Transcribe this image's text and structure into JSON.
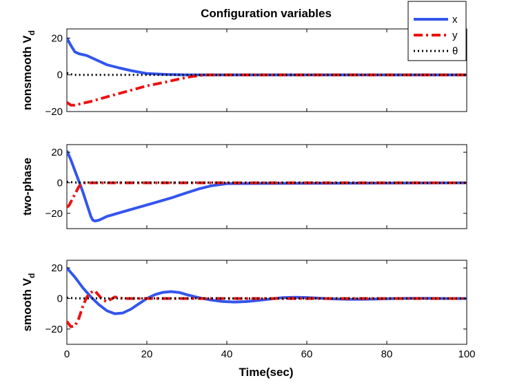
{
  "chart_data": {
    "type": "line",
    "title": "Configuration variables",
    "xlabel": "Time(sec)",
    "xlim": [
      0,
      100
    ],
    "xticks": [
      0,
      20,
      40,
      60,
      80,
      100
    ],
    "legend": {
      "placement": "top-right",
      "entries": [
        {
          "key": "x",
          "label": "x",
          "color": "#3355ee",
          "style": "solid"
        },
        {
          "key": "y",
          "label": "y",
          "color": "#ee1111",
          "style": "dashdot"
        },
        {
          "key": "theta",
          "label": "θ",
          "color": "#000000",
          "style": "dotted"
        }
      ]
    },
    "subplots": [
      {
        "name": "nonsmooth",
        "ylabel": "nonsmooth V",
        "ylabel_sub": "d",
        "ylim": [
          -20,
          25
        ],
        "yticks": [
          -20,
          0,
          20
        ],
        "series": [
          {
            "key": "x",
            "x": [
              0,
              1,
              2,
              3,
              5,
              8,
              10,
              13,
              16,
              20,
              25,
              30,
              35,
              40,
              100
            ],
            "y": [
              20,
              16,
              12.5,
              11.5,
              10.5,
              7.5,
              5.5,
              3.8,
              2.3,
              0.7,
              0.2,
              0,
              0,
              0,
              0
            ]
          },
          {
            "key": "y",
            "x": [
              0,
              1,
              2,
              4,
              6,
              10,
              15,
              20,
              25,
              28,
              31,
              34,
              36,
              100
            ],
            "y": [
              -15,
              -16.5,
              -16.5,
              -15.5,
              -14.5,
              -12,
              -9,
              -6,
              -3.8,
              -2.3,
              -1,
              -0.2,
              0,
              0
            ]
          },
          {
            "key": "theta",
            "x": [
              0,
              1,
              2,
              100
            ],
            "y": [
              1,
              0.3,
              0,
              0
            ]
          }
        ]
      },
      {
        "name": "two-phase",
        "ylabel": "two-phase",
        "ylabel_sub": "",
        "ylim": [
          -30,
          25
        ],
        "yticks": [
          -20,
          0,
          20
        ],
        "series": [
          {
            "key": "x",
            "x": [
              0,
              1,
              2,
              3,
              4,
              5,
              6,
              6.5,
              7,
              8,
              10,
              14,
              18,
              22,
              26,
              30,
              33,
              36,
              40,
              100
            ],
            "y": [
              21,
              15,
              8,
              1,
              -6,
              -14,
              -22,
              -24.5,
              -25,
              -24.5,
              -22,
              -19,
              -16,
              -13,
              -10,
              -6.5,
              -4,
              -2,
              -0.5,
              0
            ]
          },
          {
            "key": "y",
            "x": [
              0,
              0.5,
              1,
              2,
              3,
              4,
              5,
              100
            ],
            "y": [
              -16,
              -15,
              -12.5,
              -7.5,
              -2.5,
              0,
              0,
              0
            ]
          },
          {
            "key": "theta",
            "x": [
              0,
              2,
              100
            ],
            "y": [
              0.6,
              0.2,
              0
            ]
          }
        ]
      },
      {
        "name": "smooth",
        "ylabel": "smooth V",
        "ylabel_sub": "d",
        "ylim": [
          -30,
          25
        ],
        "yticks": [
          -20,
          0,
          20
        ],
        "series": [
          {
            "key": "x",
            "x": [
              0,
              2,
              4,
              6,
              8,
              10,
              12,
              14,
              16,
              18,
              20,
              22,
              24,
              26,
              28,
              30,
              33,
              36,
              39,
              42,
              45,
              48,
              51,
              54,
              57,
              60,
              63,
              66,
              70,
              74,
              78,
              82,
              86,
              90,
              95,
              100
            ],
            "y": [
              20,
              14,
              7,
              1,
              -4,
              -8,
              -10,
              -9.5,
              -7,
              -3.5,
              0,
              2.5,
              4,
              4.5,
              4,
              2.5,
              0.5,
              -1,
              -2,
              -2.3,
              -2,
              -1.2,
              -0.3,
              0.5,
              0.8,
              0.6,
              0.2,
              -0.2,
              -0.5,
              -0.5,
              -0.3,
              0,
              0.1,
              0.1,
              0,
              0
            ]
          },
          {
            "key": "y",
            "x": [
              0,
              1,
              2,
              3,
              4,
              5,
              6,
              7,
              8,
              9,
              10,
              11,
              12,
              13,
              14,
              16,
              100
            ],
            "y": [
              -15,
              -18.5,
              -18,
              -13,
              -5,
              1,
              4,
              5,
              2,
              -1,
              -2,
              -0.5,
              1,
              0.5,
              0,
              0,
              0
            ]
          },
          {
            "key": "theta",
            "x": [
              0,
              2,
              100
            ],
            "y": [
              0.5,
              0.1,
              0
            ]
          }
        ]
      }
    ]
  }
}
